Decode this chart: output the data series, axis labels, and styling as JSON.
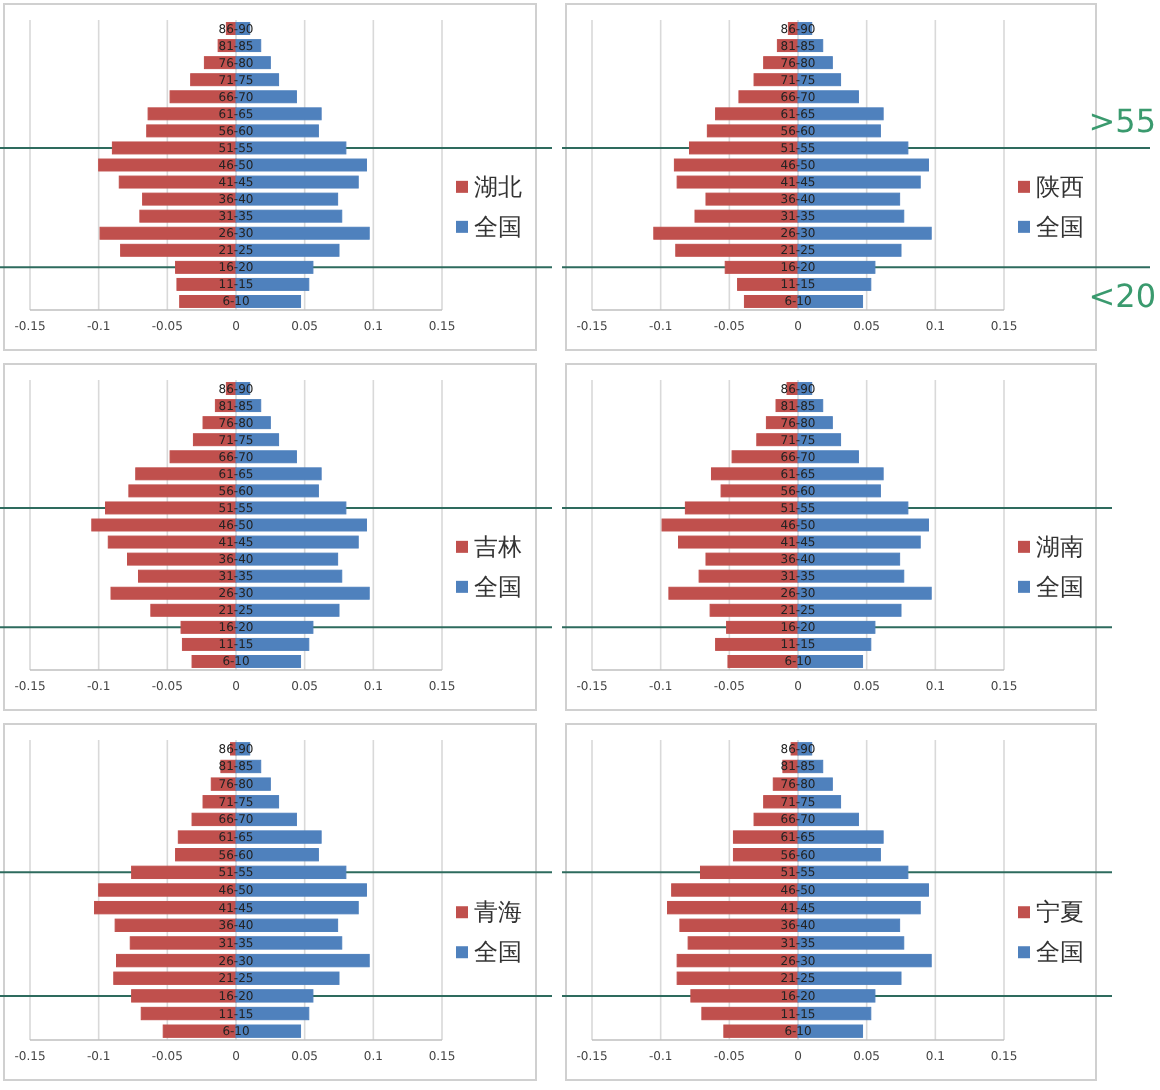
{
  "chart_data": [
    {
      "type": "bar",
      "orientation": "horizontal",
      "stacked": true,
      "categories": [
        "86-90",
        "81-85",
        "76-80",
        "71-75",
        "66-70",
        "61-65",
        "56-60",
        "51-55",
        "46-50",
        "41-45",
        "36-40",
        "31-35",
        "26-30",
        "21-25",
        "16-20",
        "11-15",
        "6-10"
      ],
      "series": [
        {
          "name": "湖北",
          "color": "#c0504d",
          "values": [
            -0.007,
            -0.013,
            -0.023,
            -0.033,
            -0.048,
            -0.064,
            -0.065,
            -0.09,
            -0.1,
            -0.085,
            -0.068,
            -0.07,
            -0.099,
            -0.084,
            -0.044,
            -0.043,
            -0.041
          ]
        },
        {
          "name": "全国",
          "color": "#4f81bd",
          "values": [
            0.01,
            0.018,
            0.025,
            0.031,
            0.044,
            0.062,
            0.06,
            0.08,
            0.095,
            0.089,
            0.074,
            0.077,
            0.097,
            0.075,
            0.056,
            0.053,
            0.047
          ]
        }
      ],
      "xlim": [
        -0.15,
        0.15
      ],
      "xticks": [
        -0.15,
        -0.1,
        -0.05,
        0,
        0.05,
        0.1,
        0.15
      ],
      "grid": "x",
      "legend": "right",
      "ref_lines": [
        {
          "axis": "y",
          "value": "51-55",
          "label": null,
          "color": "#2e6b5e"
        },
        {
          "axis": "y",
          "value": "16-20",
          "label": null,
          "color": "#2e6b5e"
        }
      ]
    },
    {
      "type": "bar",
      "orientation": "horizontal",
      "stacked": true,
      "categories": [
        "86-90",
        "81-85",
        "76-80",
        "71-75",
        "66-70",
        "61-65",
        "56-60",
        "51-55",
        "46-50",
        "41-45",
        "36-40",
        "31-35",
        "26-30",
        "21-25",
        "16-20",
        "11-15",
        "6-10"
      ],
      "series": [
        {
          "name": "陕西",
          "color": "#c0504d",
          "values": [
            -0.007,
            -0.015,
            -0.025,
            -0.032,
            -0.043,
            -0.06,
            -0.066,
            -0.079,
            -0.09,
            -0.088,
            -0.067,
            -0.075,
            -0.105,
            -0.089,
            -0.053,
            -0.044,
            -0.039
          ]
        },
        {
          "name": "全国",
          "color": "#4f81bd",
          "values": [
            0.01,
            0.018,
            0.025,
            0.031,
            0.044,
            0.062,
            0.06,
            0.08,
            0.095,
            0.089,
            0.074,
            0.077,
            0.097,
            0.075,
            0.056,
            0.053,
            0.047
          ]
        }
      ],
      "xlim": [
        -0.15,
        0.15
      ],
      "xticks": [
        -0.15,
        -0.1,
        -0.05,
        0,
        0.05,
        0.1,
        0.15
      ],
      "grid": "x",
      "legend": "right",
      "ref_lines": [
        {
          "axis": "y",
          "value": "51-55",
          "label": ">55",
          "color": "#2e6b5e"
        },
        {
          "axis": "y",
          "value": "16-20",
          "label": "<20",
          "color": "#2e6b5e"
        }
      ]
    },
    {
      "type": "bar",
      "orientation": "horizontal",
      "stacked": true,
      "categories": [
        "86-90",
        "81-85",
        "76-80",
        "71-75",
        "66-70",
        "61-65",
        "56-60",
        "51-55",
        "46-50",
        "41-45",
        "36-40",
        "31-35",
        "26-30",
        "21-25",
        "16-20",
        "11-15",
        "6-10"
      ],
      "series": [
        {
          "name": "吉林",
          "color": "#c0504d",
          "values": [
            -0.007,
            -0.015,
            -0.024,
            -0.031,
            -0.048,
            -0.073,
            -0.078,
            -0.095,
            -0.105,
            -0.093,
            -0.079,
            -0.071,
            -0.091,
            -0.062,
            -0.04,
            -0.039,
            -0.032
          ]
        },
        {
          "name": "全国",
          "color": "#4f81bd",
          "values": [
            0.01,
            0.018,
            0.025,
            0.031,
            0.044,
            0.062,
            0.06,
            0.08,
            0.095,
            0.089,
            0.074,
            0.077,
            0.097,
            0.075,
            0.056,
            0.053,
            0.047
          ]
        }
      ],
      "xlim": [
        -0.15,
        0.15
      ],
      "xticks": [
        -0.15,
        -0.1,
        -0.05,
        0,
        0.05,
        0.1,
        0.15
      ],
      "grid": "x",
      "legend": "right",
      "ref_lines": [
        {
          "axis": "y",
          "value": "51-55",
          "label": null,
          "color": "#2e6b5e"
        },
        {
          "axis": "y",
          "value": "16-20",
          "label": null,
          "color": "#2e6b5e"
        }
      ]
    },
    {
      "type": "bar",
      "orientation": "horizontal",
      "stacked": true,
      "categories": [
        "86-90",
        "81-85",
        "76-80",
        "71-75",
        "66-70",
        "61-65",
        "56-60",
        "51-55",
        "46-50",
        "41-45",
        "36-40",
        "31-35",
        "26-30",
        "21-25",
        "16-20",
        "11-15",
        "6-10"
      ],
      "series": [
        {
          "name": "湖南",
          "color": "#c0504d",
          "values": [
            -0.008,
            -0.016,
            -0.023,
            -0.03,
            -0.048,
            -0.063,
            -0.056,
            -0.082,
            -0.099,
            -0.087,
            -0.067,
            -0.072,
            -0.094,
            -0.064,
            -0.052,
            -0.06,
            -0.051
          ]
        },
        {
          "name": "全国",
          "color": "#4f81bd",
          "values": [
            0.01,
            0.018,
            0.025,
            0.031,
            0.044,
            0.062,
            0.06,
            0.08,
            0.095,
            0.089,
            0.074,
            0.077,
            0.097,
            0.075,
            0.056,
            0.053,
            0.047
          ]
        }
      ],
      "xlim": [
        -0.15,
        0.15
      ],
      "xticks": [
        -0.15,
        -0.1,
        -0.05,
        0,
        0.05,
        0.1,
        0.15
      ],
      "grid": "x",
      "legend": "right",
      "ref_lines": [
        {
          "axis": "y",
          "value": "51-55",
          "label": null,
          "color": "#2e6b5e"
        },
        {
          "axis": "y",
          "value": "16-20",
          "label": null,
          "color": "#2e6b5e"
        }
      ]
    },
    {
      "type": "bar",
      "orientation": "horizontal",
      "stacked": true,
      "categories": [
        "86-90",
        "81-85",
        "76-80",
        "71-75",
        "66-70",
        "61-65",
        "56-60",
        "51-55",
        "46-50",
        "41-45",
        "36-40",
        "31-35",
        "26-30",
        "21-25",
        "16-20",
        "11-15",
        "6-10"
      ],
      "series": [
        {
          "name": "青海",
          "color": "#c0504d",
          "values": [
            -0.004,
            -0.011,
            -0.018,
            -0.024,
            -0.032,
            -0.042,
            -0.044,
            -0.076,
            -0.1,
            -0.103,
            -0.088,
            -0.077,
            -0.087,
            -0.089,
            -0.076,
            -0.069,
            -0.053
          ]
        },
        {
          "name": "全国",
          "color": "#4f81bd",
          "values": [
            0.01,
            0.018,
            0.025,
            0.031,
            0.044,
            0.062,
            0.06,
            0.08,
            0.095,
            0.089,
            0.074,
            0.077,
            0.097,
            0.075,
            0.056,
            0.053,
            0.047
          ]
        }
      ],
      "xlim": [
        -0.15,
        0.15
      ],
      "xticks": [
        -0.15,
        -0.1,
        -0.05,
        0,
        0.05,
        0.1,
        0.15
      ],
      "grid": "x",
      "legend": "right",
      "ref_lines": [
        {
          "axis": "y",
          "value": "51-55",
          "label": null,
          "color": "#2e6b5e"
        },
        {
          "axis": "y",
          "value": "16-20",
          "label": null,
          "color": "#2e6b5e"
        }
      ]
    },
    {
      "type": "bar",
      "orientation": "horizontal",
      "stacked": true,
      "categories": [
        "86-90",
        "81-85",
        "76-80",
        "71-75",
        "66-70",
        "61-65",
        "56-60",
        "51-55",
        "46-50",
        "41-45",
        "36-40",
        "31-35",
        "26-30",
        "21-25",
        "16-20",
        "11-15",
        "6-10"
      ],
      "series": [
        {
          "name": "宁夏",
          "color": "#c0504d",
          "values": [
            -0.005,
            -0.011,
            -0.018,
            -0.025,
            -0.032,
            -0.047,
            -0.047,
            -0.071,
            -0.092,
            -0.095,
            -0.086,
            -0.08,
            -0.088,
            -0.088,
            -0.078,
            -0.07,
            -0.054
          ]
        },
        {
          "name": "全国",
          "color": "#4f81bd",
          "values": [
            0.01,
            0.018,
            0.025,
            0.031,
            0.044,
            0.062,
            0.06,
            0.08,
            0.095,
            0.089,
            0.074,
            0.077,
            0.097,
            0.075,
            0.056,
            0.053,
            0.047
          ]
        }
      ],
      "xlim": [
        -0.15,
        0.15
      ],
      "xticks": [
        -0.15,
        -0.1,
        -0.05,
        0,
        0.05,
        0.1,
        0.15
      ],
      "grid": "x",
      "legend": "right",
      "ref_lines": [
        {
          "axis": "y",
          "value": "51-55",
          "label": null,
          "color": "#2e6b5e"
        },
        {
          "axis": "y",
          "value": "16-20",
          "label": null,
          "color": "#2e6b5e"
        }
      ]
    }
  ]
}
